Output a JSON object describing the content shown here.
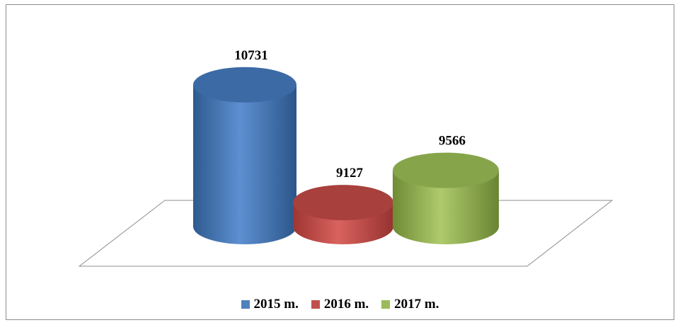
{
  "chart_data": {
    "type": "bar",
    "style": "3d-cylinder",
    "categories": [
      "2015 m.",
      "2016 m.",
      "2017 m."
    ],
    "values": [
      10731,
      9127,
      9566
    ],
    "value_labels": [
      "10731",
      "9127",
      "9566"
    ],
    "colors": [
      "#4f81bd",
      "#c0504d",
      "#9bbb59"
    ],
    "title": "",
    "xlabel": "",
    "ylabel": "",
    "grid": false,
    "legend": "bottom"
  }
}
